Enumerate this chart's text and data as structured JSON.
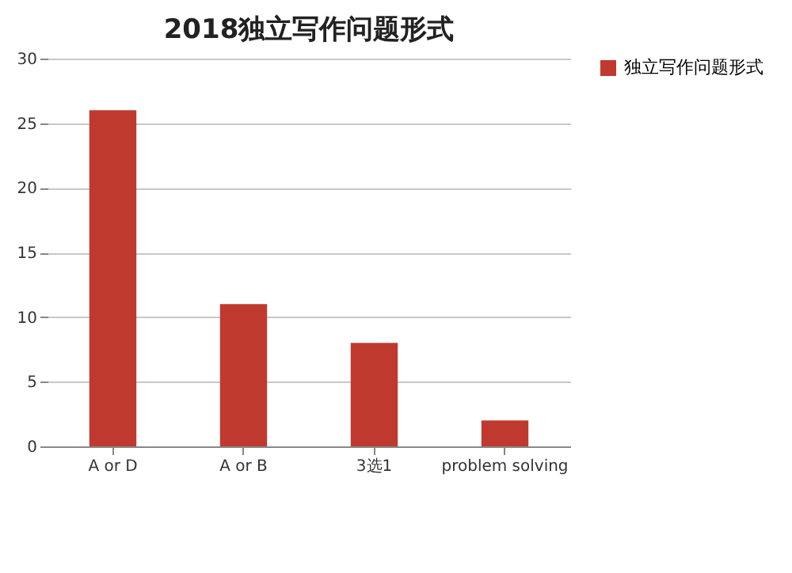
{
  "chart_data": {
    "type": "bar",
    "title": "2018独立写作问题形式",
    "categories": [
      "A or D",
      "A or B",
      "3选1",
      "problem solving"
    ],
    "series": [
      {
        "name": "独立写作问题形式",
        "color": "#c0392f",
        "values": [
          26,
          11,
          8,
          2
        ]
      }
    ],
    "ylim": [
      0,
      30
    ],
    "yticks": [
      0,
      5,
      10,
      15,
      20,
      25,
      30
    ],
    "grid": "y",
    "legend": "right"
  }
}
